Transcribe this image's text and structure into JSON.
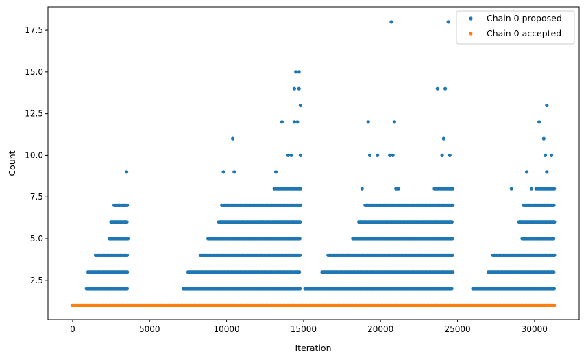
{
  "chart_data": {
    "type": "scatter",
    "title": "",
    "xlabel": "Iteration",
    "ylabel": "Count",
    "xlim": [
      -1600,
      32900
    ],
    "ylim": [
      0.15,
      18.9
    ],
    "xticks": [
      0,
      5000,
      10000,
      15000,
      20000,
      25000,
      30000
    ],
    "xtick_labels": [
      "0",
      "5000",
      "10000",
      "15000",
      "20000",
      "25000",
      "30000"
    ],
    "yticks": [
      2.5,
      5.0,
      7.5,
      10.0,
      12.5,
      15.0,
      17.5
    ],
    "ytick_labels": [
      "2.5",
      "5.0",
      "7.5",
      "10.0",
      "12.5",
      "15.0",
      "17.5"
    ],
    "grid": false,
    "legend_position": "top-right",
    "x_max": 31300,
    "series": [
      {
        "name": "Chain 0 proposed",
        "color": "#1f77b4",
        "points": [
          [
            3500,
            9
          ],
          [
            10400,
            11
          ],
          [
            14500,
            15
          ],
          [
            14700,
            15
          ],
          [
            14400,
            14
          ],
          [
            14700,
            14
          ],
          [
            14800,
            13
          ],
          [
            13600,
            12
          ],
          [
            14400,
            12
          ],
          [
            14600,
            12
          ],
          [
            20700,
            18
          ],
          [
            24400,
            18
          ],
          [
            19200,
            12
          ],
          [
            20900,
            12
          ],
          [
            23700,
            14
          ],
          [
            24200,
            14
          ],
          [
            24100,
            11
          ],
          [
            30300,
            12
          ],
          [
            30800,
            13
          ],
          [
            30600,
            11
          ],
          [
            13200,
            9
          ],
          [
            14000,
            10
          ],
          [
            14200,
            10
          ],
          [
            14800,
            10
          ],
          [
            19300,
            10
          ],
          [
            19800,
            10
          ],
          [
            20600,
            10
          ],
          [
            20800,
            10
          ],
          [
            24000,
            10
          ],
          [
            24500,
            10
          ],
          [
            30700,
            10
          ],
          [
            31100,
            10
          ],
          [
            9800,
            9
          ],
          [
            10500,
            9
          ],
          [
            29500,
            9
          ],
          [
            30800,
            9
          ],
          [
            18800,
            8
          ],
          [
            28500,
            8
          ],
          [
            29800,
            8
          ],
          [
            3000,
            7
          ],
          [
            3300,
            7
          ]
        ],
        "bands": [
          {
            "y": 2,
            "ranges": [
              [
                900,
                3600
              ],
              [
                7200,
                14800
              ],
              [
                15100,
                24700
              ],
              [
                26000,
                31300
              ]
            ]
          },
          {
            "y": 3,
            "ranges": [
              [
                1000,
                3600
              ],
              [
                7500,
                14800
              ],
              [
                16200,
                24700
              ],
              [
                27000,
                31300
              ]
            ]
          },
          {
            "y": 4,
            "ranges": [
              [
                1500,
                3600
              ],
              [
                8300,
                14800
              ],
              [
                16600,
                24700
              ],
              [
                27300,
                31300
              ]
            ]
          },
          {
            "y": 5,
            "ranges": [
              [
                2400,
                3600
              ],
              [
                8800,
                14800
              ],
              [
                18200,
                24700
              ],
              [
                29200,
                31300
              ]
            ]
          },
          {
            "y": 6,
            "ranges": [
              [
                2500,
                3600
              ],
              [
                9500,
                14800
              ],
              [
                18600,
                24700
              ],
              [
                29000,
                31300
              ]
            ]
          },
          {
            "y": 7,
            "ranges": [
              [
                2700,
                3600
              ],
              [
                9700,
                14800
              ],
              [
                19000,
                24700
              ],
              [
                29300,
                31300
              ]
            ]
          },
          {
            "y": 8,
            "ranges": [
              [
                13100,
                14800
              ],
              [
                21000,
                21200
              ],
              [
                23500,
                24700
              ],
              [
                30100,
                31300
              ]
            ]
          }
        ]
      },
      {
        "name": "Chain 0 accepted",
        "color": "#ff7f0e",
        "bands": [
          {
            "y": 1,
            "ranges": [
              [
                0,
                31300
              ]
            ]
          }
        ]
      }
    ]
  }
}
